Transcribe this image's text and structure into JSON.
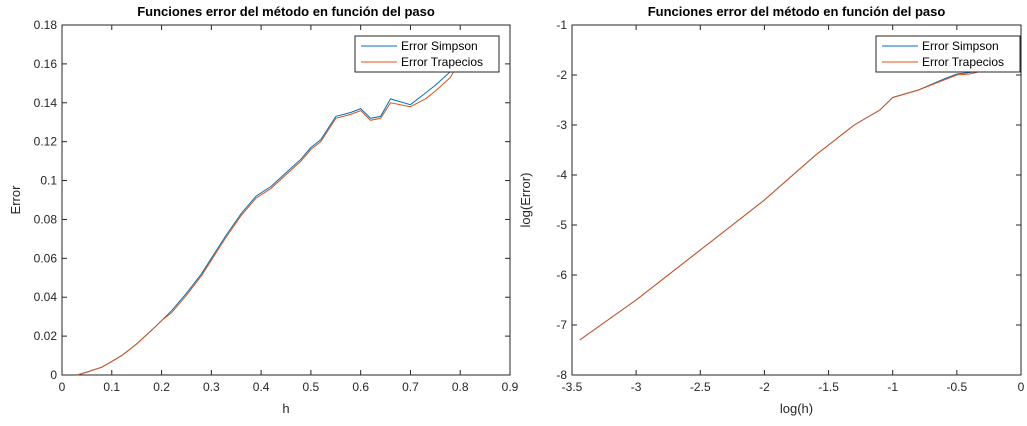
{
  "colors": {
    "simpson": "#0072BD",
    "trapecios": "#D95319",
    "axis": "#262626",
    "background": "#ffffff"
  },
  "chart_data": [
    {
      "type": "line",
      "title": "Funciones error del método en función del paso",
      "xlabel": "h",
      "ylabel": "Error",
      "xlim": [
        0,
        0.9
      ],
      "ylim": [
        0,
        0.18
      ],
      "xticks": [
        0,
        0.1,
        0.2,
        0.3,
        0.4,
        0.5,
        0.6,
        0.7,
        0.8,
        0.9
      ],
      "xtick_labels": [
        "0",
        "0.1",
        "0.2",
        "0.3",
        "0.4",
        "0.5",
        "0.6",
        "0.7",
        "0.8",
        "0.9"
      ],
      "yticks": [
        0,
        0.02,
        0.04,
        0.06,
        0.08,
        0.1,
        0.12,
        0.14,
        0.16,
        0.18
      ],
      "ytick_labels": [
        "0",
        "0.02",
        "0.04",
        "0.06",
        "0.08",
        "0.1",
        "0.12",
        "0.14",
        "0.16",
        "0.18"
      ],
      "grid": false,
      "legend": "top-right",
      "series": [
        {
          "name": "Error Simpson",
          "x": [
            0.03,
            0.05,
            0.08,
            0.1,
            0.12,
            0.15,
            0.18,
            0.2,
            0.22,
            0.25,
            0.28,
            0.3,
            0.33,
            0.36,
            0.39,
            0.42,
            0.45,
            0.48,
            0.5,
            0.52,
            0.55,
            0.58,
            0.6,
            0.62,
            0.64,
            0.66,
            0.7,
            0.73,
            0.75,
            0.78,
            0.8,
            0.83
          ],
          "y": [
            0,
            0.0015,
            0.004,
            0.007,
            0.01,
            0.016,
            0.023,
            0.028,
            0.033,
            0.042,
            0.052,
            0.06,
            0.072,
            0.083,
            0.092,
            0.097,
            0.104,
            0.111,
            0.117,
            0.121,
            0.133,
            0.135,
            0.137,
            0.132,
            0.133,
            0.142,
            0.139,
            0.145,
            0.149,
            0.156,
            0.165,
            0.173
          ]
        },
        {
          "name": "Error Trapecios",
          "x": [
            0.03,
            0.05,
            0.08,
            0.1,
            0.12,
            0.15,
            0.18,
            0.2,
            0.22,
            0.25,
            0.28,
            0.3,
            0.33,
            0.36,
            0.39,
            0.42,
            0.45,
            0.48,
            0.5,
            0.52,
            0.55,
            0.58,
            0.6,
            0.62,
            0.64,
            0.66,
            0.7,
            0.73,
            0.75,
            0.78,
            0.8,
            0.83
          ],
          "y": [
            0,
            0.0015,
            0.004,
            0.007,
            0.01,
            0.016,
            0.023,
            0.028,
            0.032,
            0.041,
            0.051,
            0.059,
            0.071,
            0.082,
            0.091,
            0.096,
            0.103,
            0.11,
            0.116,
            0.12,
            0.132,
            0.134,
            0.136,
            0.131,
            0.132,
            0.14,
            0.138,
            0.142,
            0.146,
            0.153,
            0.162,
            0.171
          ]
        }
      ]
    },
    {
      "type": "line",
      "title": "Funciones error del método en función del paso",
      "xlabel": "log(h)",
      "ylabel": "log(Error)",
      "xlim": [
        -3.5,
        0
      ],
      "ylim": [
        -8,
        -1
      ],
      "xticks": [
        -3.5,
        -3,
        -2.5,
        -2,
        -1.5,
        -1,
        -0.5,
        0
      ],
      "xtick_labels": [
        "-3.5",
        "-3",
        "-2.5",
        "-2",
        "-1.5",
        "-1",
        "-0.5",
        "0"
      ],
      "yticks": [
        -8,
        -7,
        -6,
        -5,
        -4,
        -3,
        -2,
        -1
      ],
      "ytick_labels": [
        "-8",
        "-7",
        "-6",
        "-5",
        "-4",
        "-3",
        "-2",
        "-1"
      ],
      "grid": false,
      "legend": "top-right",
      "series": [
        {
          "name": "Error Simpson",
          "x": [
            -3.44,
            -3.0,
            -2.5,
            -2.0,
            -1.6,
            -1.5,
            -1.3,
            -1.1,
            -1.0,
            -0.8,
            -0.6,
            -0.5,
            -0.4,
            -0.3
          ],
          "y": [
            -7.3,
            -6.5,
            -5.5,
            -4.5,
            -3.6,
            -3.4,
            -3.0,
            -2.7,
            -2.45,
            -2.3,
            -2.08,
            -1.98,
            -1.95,
            -1.9
          ]
        },
        {
          "name": "Error Trapecios",
          "x": [
            -3.44,
            -3.0,
            -2.5,
            -2.0,
            -1.6,
            -1.5,
            -1.3,
            -1.1,
            -1.0,
            -0.8,
            -0.6,
            -0.5,
            -0.4,
            -0.3
          ],
          "y": [
            -7.3,
            -6.5,
            -5.5,
            -4.5,
            -3.6,
            -3.4,
            -3.0,
            -2.7,
            -2.45,
            -2.3,
            -2.1,
            -2.0,
            -1.98,
            -1.92
          ]
        }
      ]
    }
  ]
}
